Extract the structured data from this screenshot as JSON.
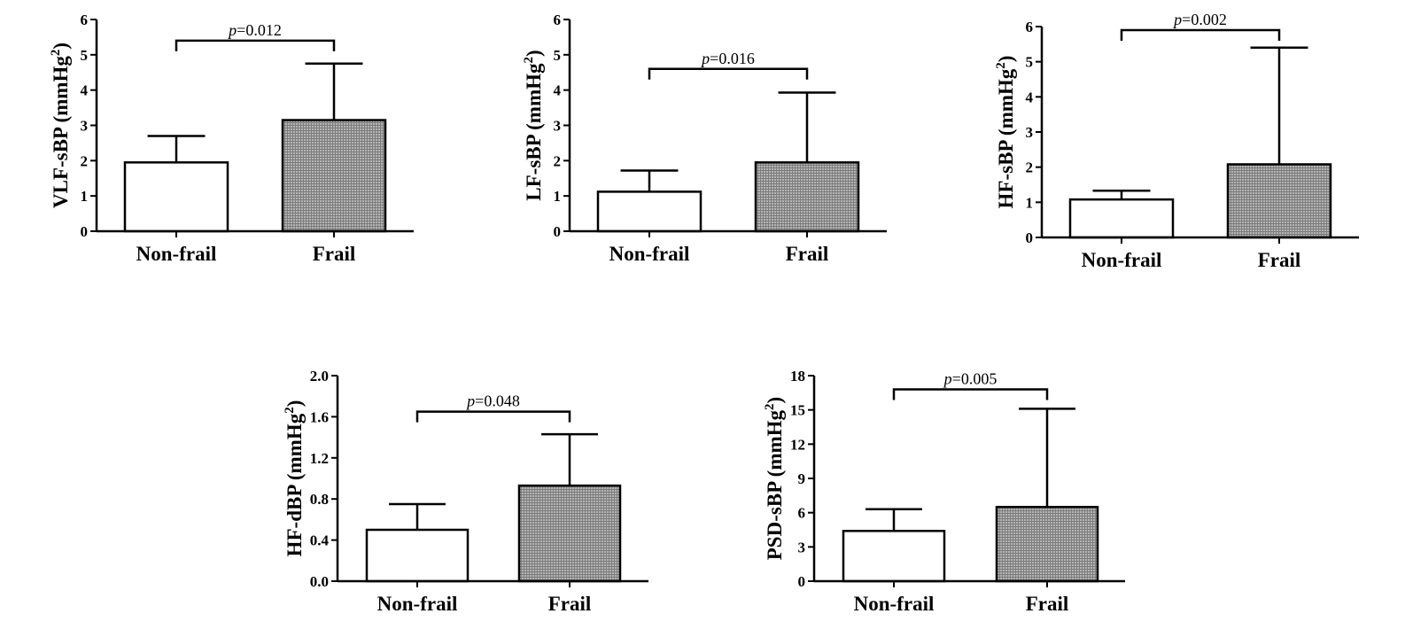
{
  "chart_data": [
    {
      "type": "bar",
      "ylabel": "VLF-sBP (mmHg²)",
      "ylabel_main": "VLF-sBP (mmHg",
      "ylabel_sup": "2",
      "ylabel_close": ")",
      "categories": [
        "Non-frail",
        "Frail"
      ],
      "values": [
        1.95,
        3.15
      ],
      "error_upper": [
        2.7,
        4.75
      ],
      "ylim": [
        0,
        6
      ],
      "yticks": [
        "0",
        "1",
        "2",
        "3",
        "4",
        "5",
        "6"
      ],
      "bracket_y": 5.4,
      "p_prefix": "p",
      "p_value": "=0.012",
      "fills": [
        "white",
        "hatched-gray"
      ]
    },
    {
      "type": "bar",
      "ylabel": "LF-sBP (mmHg²)",
      "ylabel_main": "LF-sBP (mmHg",
      "ylabel_sup": "2",
      "ylabel_close": ")",
      "categories": [
        "Non-frail",
        "Frail"
      ],
      "values": [
        1.12,
        1.95
      ],
      "error_upper": [
        1.72,
        3.93
      ],
      "ylim": [
        0,
        6
      ],
      "yticks": [
        "0",
        "1",
        "2",
        "3",
        "4",
        "5",
        "6"
      ],
      "bracket_y": 4.6,
      "p_prefix": "p",
      "p_value": "=0.016",
      "fills": [
        "white",
        "hatched-gray"
      ]
    },
    {
      "type": "bar",
      "ylabel": "HF-sBP (mmHg²)",
      "ylabel_main": "HF-sBP (mmHg",
      "ylabel_sup": "2",
      "ylabel_close": ")",
      "categories": [
        "Non-frail",
        "Frail"
      ],
      "values": [
        1.08,
        2.08
      ],
      "error_upper": [
        1.33,
        5.4
      ],
      "ylim": [
        0,
        6
      ],
      "yticks": [
        "0",
        "1",
        "2",
        "3",
        "4",
        "5",
        "6"
      ],
      "bracket_y": 5.9,
      "p_prefix": "p",
      "p_value": "=0.002",
      "fills": [
        "white",
        "hatched-gray"
      ]
    },
    {
      "type": "bar",
      "ylabel": "HF-dBP (mmHg²)",
      "ylabel_main": "HF-dBP (mmHg",
      "ylabel_sup": "2",
      "ylabel_close": ")",
      "categories": [
        "Non-frail",
        "Frail"
      ],
      "values": [
        0.5,
        0.93
      ],
      "error_upper": [
        0.75,
        1.43
      ],
      "ylim": [
        0,
        2.0
      ],
      "yticks": [
        "0.0",
        "0.4",
        "0.8",
        "1.2",
        "1.6",
        "2.0"
      ],
      "bracket_y": 1.65,
      "p_prefix": "p",
      "p_value": "=0.048",
      "fills": [
        "white",
        "hatched-gray"
      ]
    },
    {
      "type": "bar",
      "ylabel": "PSD-sBP (mmHg²)",
      "ylabel_main": "PSD-sBP (mmHg",
      "ylabel_sup": "2",
      "ylabel_close": ")",
      "categories": [
        "Non-frail",
        "Frail"
      ],
      "values": [
        4.4,
        6.5
      ],
      "error_upper": [
        6.3,
        15.1
      ],
      "ylim": [
        0,
        18
      ],
      "yticks": [
        "0",
        "3",
        "6",
        "9",
        "12",
        "15",
        "18"
      ],
      "bracket_y": 16.8,
      "p_prefix": "p",
      "p_value": "=0.005",
      "fills": [
        "white",
        "hatched-gray"
      ]
    }
  ]
}
